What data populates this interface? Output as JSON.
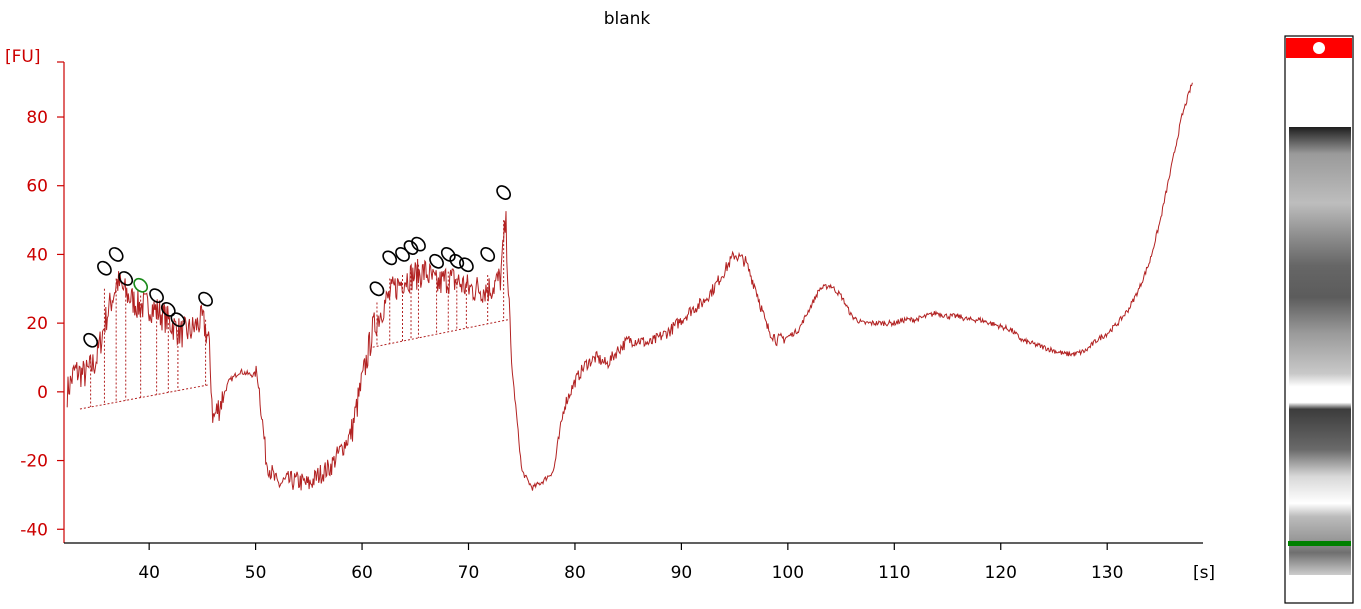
{
  "chart_data": {
    "type": "line",
    "title": "blank",
    "ylabel": "[FU]",
    "xlabel": "[s]",
    "xlim": [
      32,
      139
    ],
    "ylim": [
      -44,
      103
    ],
    "x_ticks": [
      40,
      50,
      60,
      70,
      80,
      90,
      100,
      110,
      120,
      130
    ],
    "y_ticks": [
      -40,
      -20,
      0,
      20,
      40,
      60,
      80
    ],
    "grid": false,
    "colors": {
      "axis": "#cc0000",
      "trace": "#b22222",
      "peak_marker": "#000000",
      "highlight_marker": "#1a8a1a",
      "gel_marker_top": "#ff0000",
      "gel_marker_bottom": "#008000"
    },
    "series": [
      {
        "x": [
          32.3,
          33,
          34,
          35,
          36,
          37,
          38,
          39,
          40,
          41,
          42,
          43,
          44,
          45,
          45.6,
          46,
          46.6,
          47.5,
          48.5,
          49.5,
          50.2,
          51,
          52,
          53,
          54,
          55,
          56,
          57,
          58,
          59,
          60,
          61,
          62,
          63,
          64,
          65,
          66,
          67,
          68,
          69,
          70,
          71,
          72,
          73,
          73.5,
          74,
          75,
          76,
          77,
          78,
          79,
          80,
          81,
          82,
          83,
          84,
          85,
          86,
          87,
          88,
          89,
          90,
          91,
          92,
          93,
          94,
          95,
          96,
          97,
          98,
          99,
          100,
          101,
          102,
          103,
          104,
          105,
          106,
          107,
          108,
          109,
          110,
          111,
          112,
          113,
          114,
          115,
          116,
          117,
          118,
          119,
          120,
          121,
          122,
          123,
          124,
          125,
          126,
          127,
          128,
          129,
          130,
          131,
          132,
          133,
          134,
          135,
          136,
          137,
          138
        ],
        "y": [
          0,
          6,
          5,
          9,
          22,
          32,
          28,
          25,
          25,
          23,
          20,
          17,
          18,
          21,
          15,
          -8,
          -4,
          3,
          6,
          5,
          5,
          -20,
          -27,
          -26,
          -26,
          -27,
          -24,
          -22,
          -17,
          -12,
          3,
          18,
          25,
          30,
          33,
          34,
          35,
          31,
          33,
          32,
          30,
          30,
          30,
          33,
          50,
          10,
          -23,
          -28,
          -26,
          -23,
          -4,
          3,
          8,
          10,
          8,
          12,
          15,
          15,
          14,
          16,
          18,
          21,
          24,
          26,
          30,
          35,
          40,
          38,
          30,
          19,
          15,
          16,
          18,
          24,
          30,
          31,
          28,
          22,
          20,
          20,
          20,
          20,
          21,
          21,
          22,
          23,
          22,
          22,
          21,
          21,
          20,
          19,
          18,
          15,
          14,
          13,
          12,
          11,
          11,
          12,
          15,
          17,
          20,
          24,
          30,
          38,
          50,
          65,
          80,
          90
        ]
      }
    ],
    "peaks": [
      {
        "x": 34.5,
        "y": 10,
        "label_y": 15
      },
      {
        "x": 35.8,
        "y": 30,
        "label_y": 36
      },
      {
        "x": 36.9,
        "y": 33,
        "label_y": 40
      },
      {
        "x": 37.8,
        "y": 28,
        "label_y": 33
      },
      {
        "x": 39.2,
        "y": 28,
        "label_y": 31,
        "highlight": true
      },
      {
        "x": 40.7,
        "y": 24,
        "label_y": 28
      },
      {
        "x": 41.8,
        "y": 20,
        "label_y": 24
      },
      {
        "x": 42.7,
        "y": 18,
        "label_y": 21
      },
      {
        "x": 45.3,
        "y": 21,
        "label_y": 27
      },
      {
        "x": 61.4,
        "y": 26,
        "label_y": 30
      },
      {
        "x": 62.6,
        "y": 33,
        "label_y": 39
      },
      {
        "x": 63.8,
        "y": 34,
        "label_y": 40
      },
      {
        "x": 64.6,
        "y": 36,
        "label_y": 42
      },
      {
        "x": 65.3,
        "y": 37,
        "label_y": 43
      },
      {
        "x": 67,
        "y": 33,
        "label_y": 38
      },
      {
        "x": 68.1,
        "y": 35,
        "label_y": 40
      },
      {
        "x": 68.9,
        "y": 33,
        "label_y": 38
      },
      {
        "x": 69.8,
        "y": 32,
        "label_y": 37
      },
      {
        "x": 71.8,
        "y": 34,
        "label_y": 40
      },
      {
        "x": 73.3,
        "y": 50,
        "label_y": 58
      }
    ],
    "baseline": [
      {
        "x": 33.5,
        "y": -5
      },
      {
        "x": 45.5,
        "y": 2
      },
      {
        "x": 61,
        "y": 13
      },
      {
        "x": 73.7,
        "y": 21
      }
    ]
  }
}
